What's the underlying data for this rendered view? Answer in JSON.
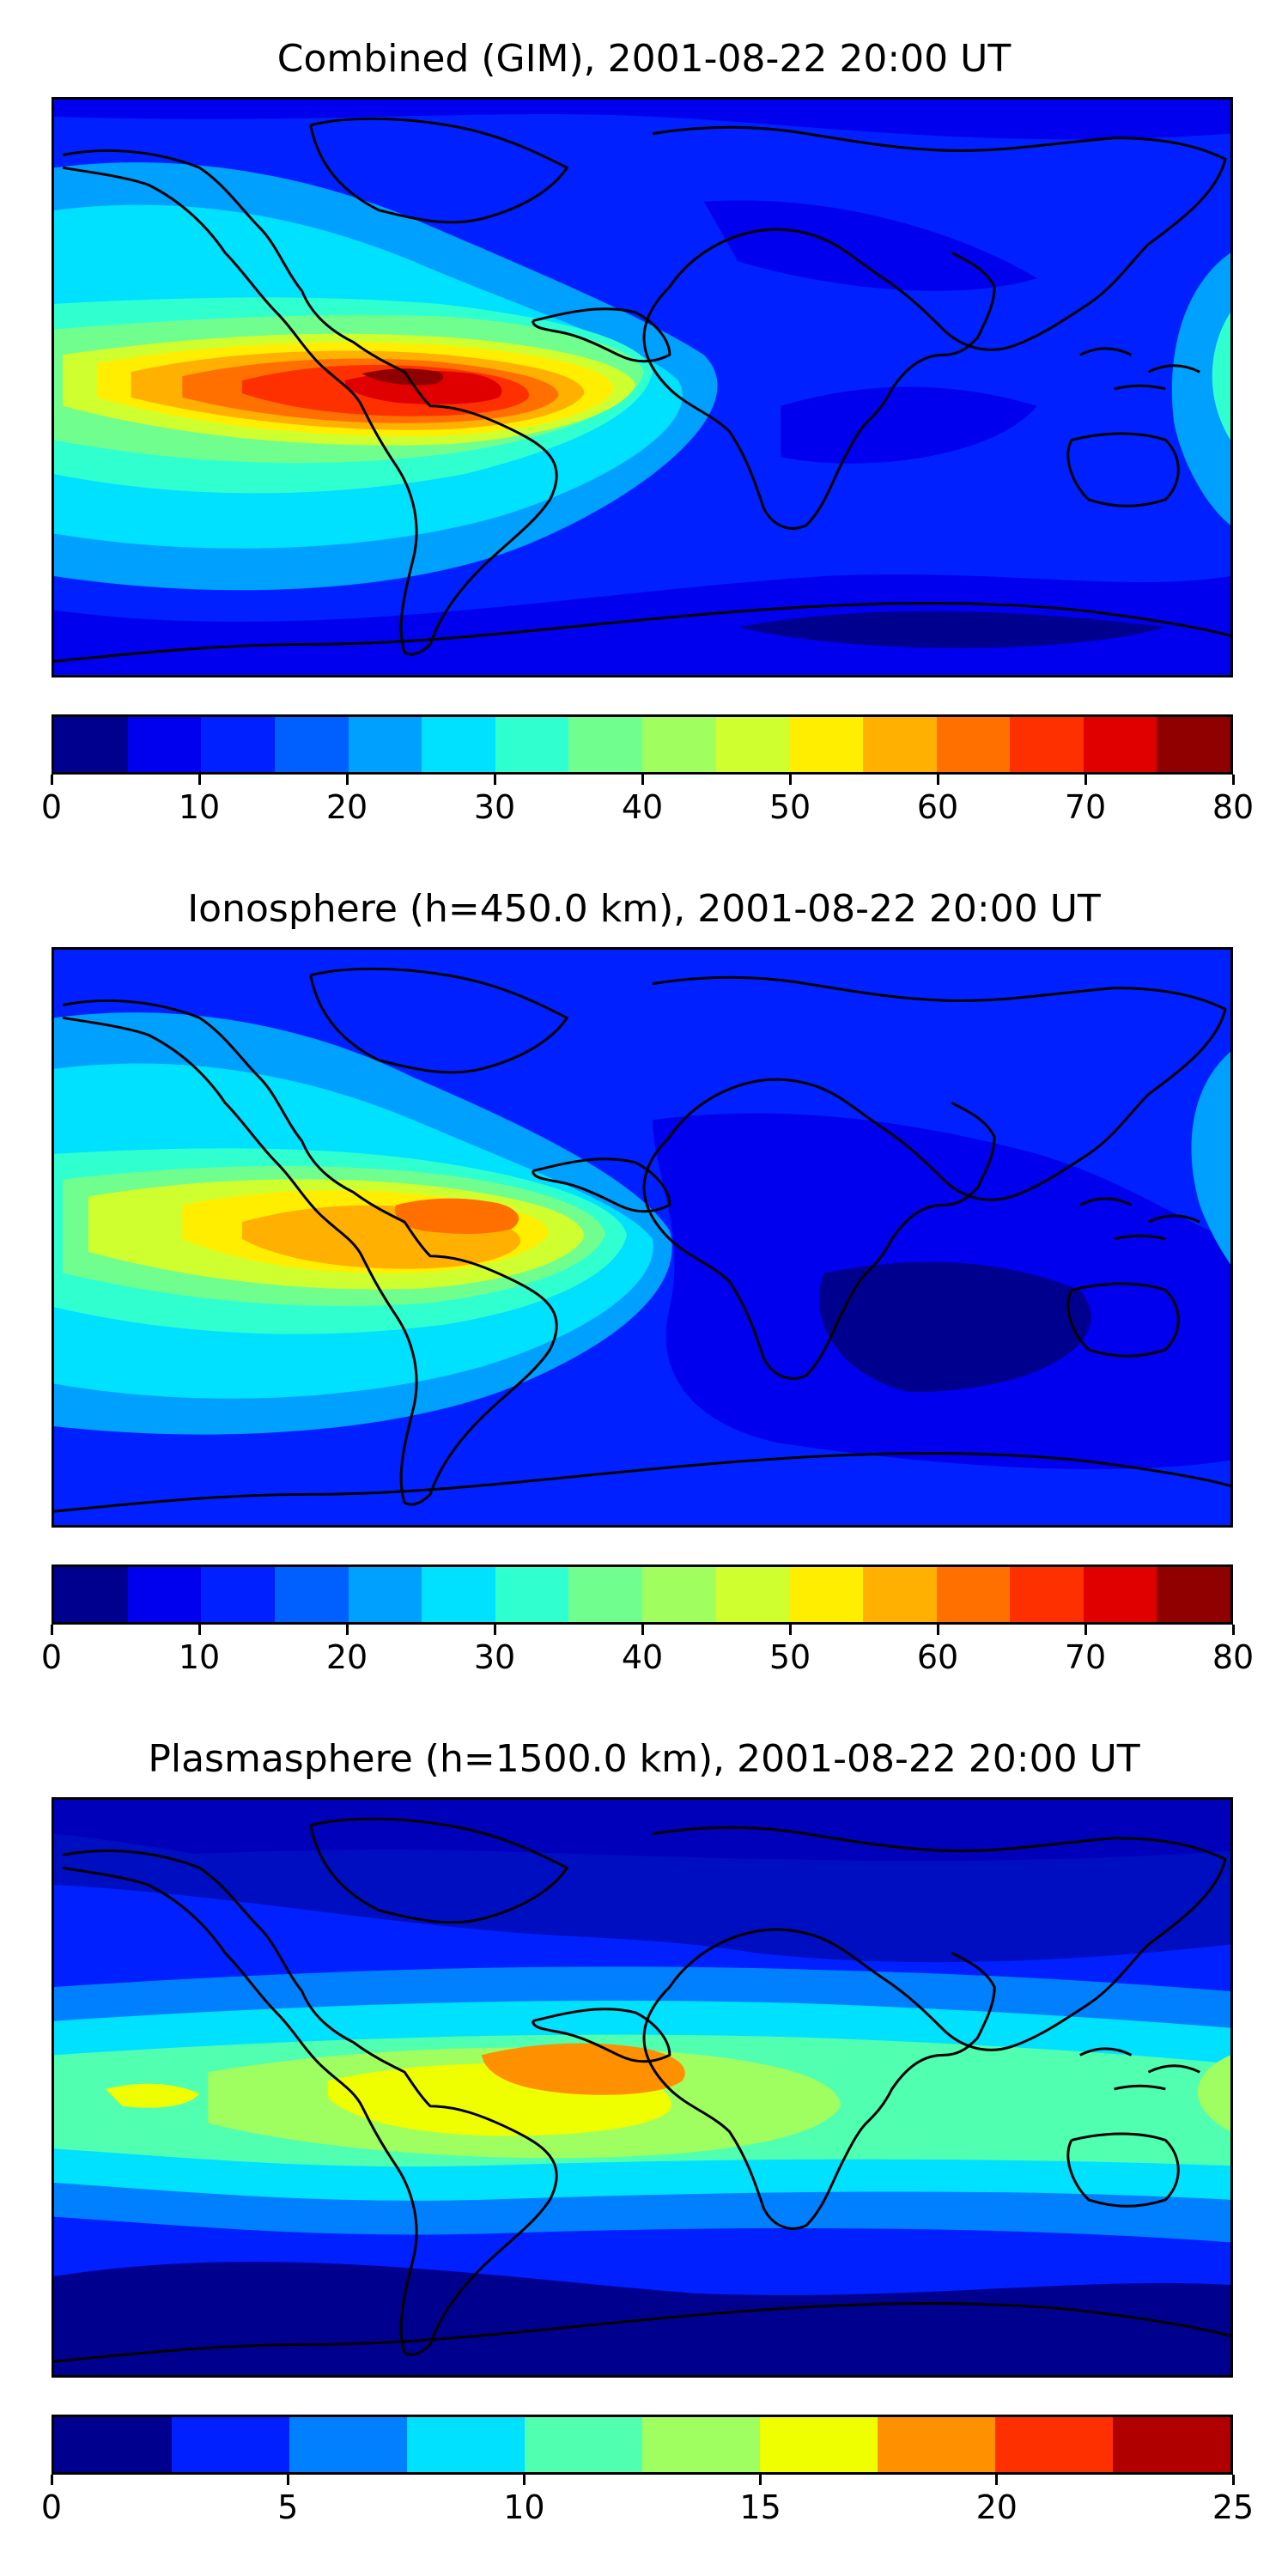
{
  "maps": [
    {
      "title": "Combined (GIM), 2001-08-22 20:00 UT",
      "colorbar": {
        "range": [
          0,
          80
        ],
        "tick_labels": [
          "0",
          "10",
          "20",
          "30",
          "40",
          "50",
          "60",
          "70",
          "80"
        ],
        "colors": [
          "#00008f",
          "#0000ef",
          "#0020ff",
          "#0060ff",
          "#00a0ff",
          "#00e0ff",
          "#30ffd0",
          "#70ff8f",
          "#a0ff5f",
          "#d0ff30",
          "#ffee00",
          "#ffb000",
          "#ff7000",
          "#ff3000",
          "#e00000",
          "#900000"
        ]
      }
    },
    {
      "title": "Ionosphere  (h=450.0 km), 2001-08-22 20:00 UT",
      "colorbar": {
        "range": [
          0,
          80
        ],
        "tick_labels": [
          "0",
          "10",
          "20",
          "30",
          "40",
          "50",
          "60",
          "70",
          "80"
        ],
        "colors": [
          "#00008f",
          "#0000ef",
          "#0020ff",
          "#0060ff",
          "#00a0ff",
          "#00e0ff",
          "#30ffd0",
          "#70ff8f",
          "#a0ff5f",
          "#d0ff30",
          "#ffee00",
          "#ffb000",
          "#ff7000",
          "#ff3000",
          "#e00000",
          "#900000"
        ]
      }
    },
    {
      "title": "Plasmasphere (h=1500.0 km), 2001-08-22 20:00 UT",
      "colorbar": {
        "range": [
          0,
          25
        ],
        "tick_labels": [
          "0",
          "5",
          "10",
          "15",
          "20",
          "25"
        ],
        "colors": [
          "#00008f",
          "#0020ff",
          "#0080ff",
          "#00e0ff",
          "#50ffb0",
          "#a0ff60",
          "#f0ff00",
          "#ff9000",
          "#ff3000",
          "#b00000"
        ]
      }
    }
  ]
}
